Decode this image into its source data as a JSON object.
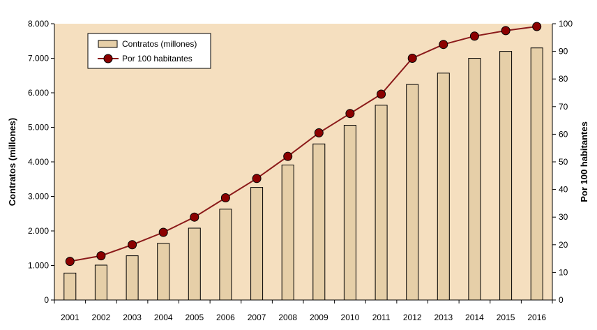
{
  "chart_data": {
    "type": "bar",
    "title": "",
    "categories": [
      "2001",
      "2002",
      "2003",
      "2004",
      "2005",
      "2006",
      "2007",
      "2008",
      "2009",
      "2010",
      "2011",
      "2012",
      "2013",
      "2014",
      "2015",
      "2016"
    ],
    "series": [
      {
        "name": "Contratos (millones)",
        "type": "bar",
        "axis": "left",
        "values": [
          780,
          1010,
          1280,
          1640,
          2080,
          2630,
          3260,
          3910,
          4520,
          5060,
          5640,
          6240,
          6570,
          7000,
          7200,
          7300
        ]
      },
      {
        "name": "Por 100 habitantes",
        "type": "line",
        "axis": "right",
        "values": [
          14,
          16,
          20,
          24.5,
          30,
          37,
          44,
          52,
          60.5,
          67.5,
          74.5,
          87.5,
          92.5,
          95.5,
          97.5,
          99
        ]
      }
    ],
    "ylabel": "Contratos (millones)",
    "y2label": "Por 100 habitantes",
    "ylim": [
      0,
      8000
    ],
    "y2lim": [
      0,
      100
    ],
    "yticks": [
      "0",
      "1.000",
      "2.000",
      "3.000",
      "4.000",
      "5.000",
      "6.000",
      "7.000",
      "8.000"
    ],
    "y2ticks": [
      "0",
      "10",
      "20",
      "30",
      "40",
      "50",
      "60",
      "70",
      "80",
      "90",
      "100"
    ],
    "legend_position": "top-left",
    "grid": false,
    "colors": {
      "plot_background": "#f5dfbf",
      "bar_fill": "#e6cfa8",
      "bar_stroke": "#000000",
      "line": "#8b1a1a",
      "marker": "#8b0000"
    }
  }
}
